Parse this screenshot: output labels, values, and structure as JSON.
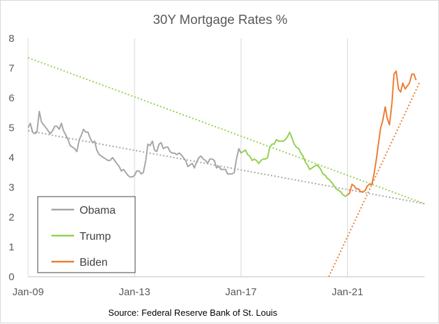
{
  "chart_data": {
    "type": "line",
    "title": "30Y Mortgage Rates %",
    "source": "Source: Federal Reserve Bank of St. Louis",
    "xlabel": "",
    "ylabel": "",
    "xlim": [
      2009.0,
      2023.9
    ],
    "ylim": [
      0,
      8
    ],
    "y_ticks": [
      0,
      1,
      2,
      3,
      4,
      5,
      6,
      7,
      8
    ],
    "x_ticks": [
      {
        "label": "Jan-09",
        "x": 2009.0
      },
      {
        "label": "Jan-13",
        "x": 2013.0
      },
      {
        "label": "Jan-17",
        "x": 2017.0
      },
      {
        "label": "Jan-21",
        "x": 2021.0
      }
    ],
    "grid": {
      "vertical": true,
      "horizontal": false
    },
    "legend": {
      "placement": "bottom-left"
    },
    "series": [
      {
        "name": "Obama",
        "color": "#a6a6a6",
        "points": [
          [
            2009.0,
            5.0
          ],
          [
            2009.08,
            5.15
          ],
          [
            2009.17,
            4.85
          ],
          [
            2009.25,
            4.8
          ],
          [
            2009.33,
            4.85
          ],
          [
            2009.42,
            5.55
          ],
          [
            2009.5,
            5.2
          ],
          [
            2009.58,
            5.1
          ],
          [
            2009.67,
            5.0
          ],
          [
            2009.75,
            4.9
          ],
          [
            2009.83,
            4.8
          ],
          [
            2009.92,
            4.9
          ],
          [
            2010.0,
            5.05
          ],
          [
            2010.08,
            5.05
          ],
          [
            2010.17,
            4.95
          ],
          [
            2010.25,
            5.15
          ],
          [
            2010.33,
            4.9
          ],
          [
            2010.42,
            4.75
          ],
          [
            2010.5,
            4.6
          ],
          [
            2010.58,
            4.4
          ],
          [
            2010.67,
            4.35
          ],
          [
            2010.75,
            4.3
          ],
          [
            2010.83,
            4.2
          ],
          [
            2010.92,
            4.6
          ],
          [
            2011.0,
            4.75
          ],
          [
            2011.08,
            4.95
          ],
          [
            2011.17,
            4.85
          ],
          [
            2011.25,
            4.85
          ],
          [
            2011.33,
            4.65
          ],
          [
            2011.42,
            4.5
          ],
          [
            2011.5,
            4.55
          ],
          [
            2011.58,
            4.25
          ],
          [
            2011.67,
            4.1
          ],
          [
            2011.75,
            4.05
          ],
          [
            2011.83,
            4.0
          ],
          [
            2011.92,
            3.95
          ],
          [
            2012.0,
            3.9
          ],
          [
            2012.08,
            3.9
          ],
          [
            2012.17,
            4.0
          ],
          [
            2012.25,
            3.9
          ],
          [
            2012.33,
            3.8
          ],
          [
            2012.42,
            3.7
          ],
          [
            2012.5,
            3.55
          ],
          [
            2012.58,
            3.6
          ],
          [
            2012.67,
            3.5
          ],
          [
            2012.75,
            3.4
          ],
          [
            2012.83,
            3.35
          ],
          [
            2012.92,
            3.35
          ],
          [
            2013.0,
            3.4
          ],
          [
            2013.08,
            3.55
          ],
          [
            2013.17,
            3.55
          ],
          [
            2013.25,
            3.45
          ],
          [
            2013.33,
            3.5
          ],
          [
            2013.42,
            3.9
          ],
          [
            2013.5,
            4.45
          ],
          [
            2013.58,
            4.4
          ],
          [
            2013.67,
            4.55
          ],
          [
            2013.75,
            4.25
          ],
          [
            2013.83,
            4.2
          ],
          [
            2013.92,
            4.45
          ],
          [
            2014.0,
            4.5
          ],
          [
            2014.08,
            4.3
          ],
          [
            2014.17,
            4.35
          ],
          [
            2014.25,
            4.35
          ],
          [
            2014.33,
            4.2
          ],
          [
            2014.42,
            4.15
          ],
          [
            2014.5,
            4.15
          ],
          [
            2014.58,
            4.1
          ],
          [
            2014.67,
            4.15
          ],
          [
            2014.75,
            4.1
          ],
          [
            2014.83,
            4.0
          ],
          [
            2014.92,
            3.9
          ],
          [
            2015.0,
            3.7
          ],
          [
            2015.08,
            3.75
          ],
          [
            2015.17,
            3.8
          ],
          [
            2015.25,
            3.65
          ],
          [
            2015.33,
            3.85
          ],
          [
            2015.42,
            4.0
          ],
          [
            2015.5,
            4.05
          ],
          [
            2015.58,
            3.95
          ],
          [
            2015.67,
            3.9
          ],
          [
            2015.75,
            3.8
          ],
          [
            2015.83,
            3.95
          ],
          [
            2015.92,
            3.95
          ],
          [
            2016.0,
            3.9
          ],
          [
            2016.08,
            3.65
          ],
          [
            2016.17,
            3.7
          ],
          [
            2016.25,
            3.6
          ],
          [
            2016.33,
            3.6
          ],
          [
            2016.42,
            3.6
          ],
          [
            2016.5,
            3.45
          ],
          [
            2016.58,
            3.45
          ],
          [
            2016.67,
            3.45
          ],
          [
            2016.75,
            3.5
          ],
          [
            2016.83,
            3.95
          ],
          [
            2016.92,
            4.3
          ],
          [
            2017.0,
            4.15
          ]
        ]
      },
      {
        "name": "Trump",
        "color": "#92d050",
        "points": [
          [
            2017.0,
            4.15
          ],
          [
            2017.08,
            4.2
          ],
          [
            2017.17,
            4.25
          ],
          [
            2017.25,
            4.1
          ],
          [
            2017.33,
            4.05
          ],
          [
            2017.42,
            3.9
          ],
          [
            2017.5,
            3.95
          ],
          [
            2017.58,
            3.9
          ],
          [
            2017.67,
            3.8
          ],
          [
            2017.75,
            3.9
          ],
          [
            2017.83,
            3.95
          ],
          [
            2017.92,
            3.95
          ],
          [
            2018.0,
            4.0
          ],
          [
            2018.08,
            4.35
          ],
          [
            2018.17,
            4.45
          ],
          [
            2018.25,
            4.45
          ],
          [
            2018.33,
            4.6
          ],
          [
            2018.42,
            4.55
          ],
          [
            2018.5,
            4.55
          ],
          [
            2018.58,
            4.55
          ],
          [
            2018.67,
            4.6
          ],
          [
            2018.75,
            4.7
          ],
          [
            2018.83,
            4.85
          ],
          [
            2018.92,
            4.65
          ],
          [
            2019.0,
            4.45
          ],
          [
            2019.08,
            4.35
          ],
          [
            2019.17,
            4.3
          ],
          [
            2019.25,
            4.15
          ],
          [
            2019.33,
            4.05
          ],
          [
            2019.42,
            3.85
          ],
          [
            2019.5,
            3.75
          ],
          [
            2019.58,
            3.6
          ],
          [
            2019.67,
            3.65
          ],
          [
            2019.75,
            3.7
          ],
          [
            2019.83,
            3.75
          ],
          [
            2019.92,
            3.7
          ],
          [
            2020.0,
            3.6
          ],
          [
            2020.08,
            3.45
          ],
          [
            2020.17,
            3.4
          ],
          [
            2020.25,
            3.3
          ],
          [
            2020.33,
            3.25
          ],
          [
            2020.42,
            3.15
          ],
          [
            2020.5,
            3.05
          ],
          [
            2020.58,
            2.95
          ],
          [
            2020.67,
            2.9
          ],
          [
            2020.75,
            2.85
          ],
          [
            2020.83,
            2.75
          ],
          [
            2020.92,
            2.7
          ],
          [
            2021.0,
            2.75
          ]
        ]
      },
      {
        "name": "Biden",
        "color": "#ed7d31",
        "points": [
          [
            2021.0,
            2.75
          ],
          [
            2021.08,
            2.8
          ],
          [
            2021.17,
            3.1
          ],
          [
            2021.25,
            3.05
          ],
          [
            2021.33,
            2.95
          ],
          [
            2021.42,
            2.95
          ],
          [
            2021.5,
            2.85
          ],
          [
            2021.58,
            2.85
          ],
          [
            2021.67,
            2.9
          ],
          [
            2021.75,
            3.05
          ],
          [
            2021.83,
            3.1
          ],
          [
            2021.92,
            3.1
          ],
          [
            2022.0,
            3.45
          ],
          [
            2022.08,
            3.9
          ],
          [
            2022.17,
            4.5
          ],
          [
            2022.25,
            5.0
          ],
          [
            2022.33,
            5.25
          ],
          [
            2022.42,
            5.7
          ],
          [
            2022.5,
            5.3
          ],
          [
            2022.58,
            5.1
          ],
          [
            2022.67,
            5.8
          ],
          [
            2022.75,
            6.8
          ],
          [
            2022.83,
            6.9
          ],
          [
            2022.92,
            6.3
          ],
          [
            2023.0,
            6.2
          ],
          [
            2023.08,
            6.5
          ],
          [
            2023.17,
            6.3
          ],
          [
            2023.25,
            6.4
          ],
          [
            2023.33,
            6.5
          ],
          [
            2023.42,
            6.8
          ],
          [
            2023.5,
            6.8
          ],
          [
            2023.58,
            6.6
          ]
        ]
      }
    ],
    "trendlines": [
      {
        "series": "Obama",
        "color": "#a6a6a6",
        "points": [
          [
            2009.0,
            4.9
          ],
          [
            2023.9,
            2.45
          ]
        ]
      },
      {
        "series": "Trump",
        "color": "#92d050",
        "points": [
          [
            2009.0,
            7.35
          ],
          [
            2023.9,
            2.45
          ]
        ]
      },
      {
        "series": "Biden",
        "color": "#ed7d31",
        "points": [
          [
            2020.3,
            0.0
          ],
          [
            2023.7,
            6.5
          ]
        ]
      }
    ]
  }
}
